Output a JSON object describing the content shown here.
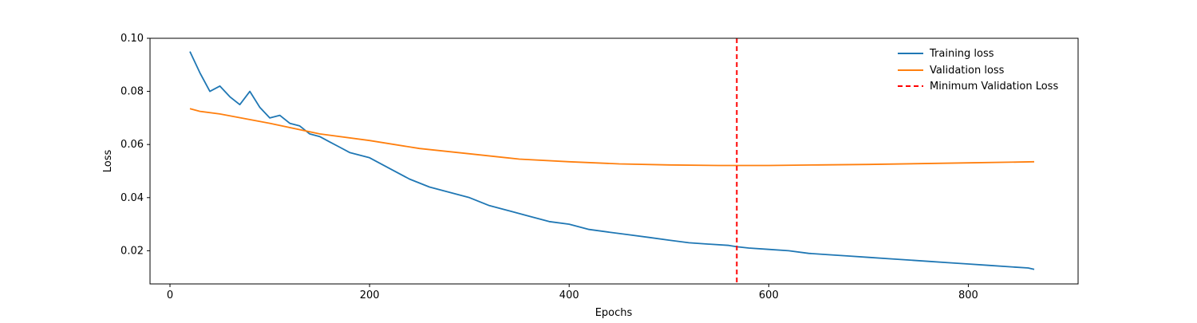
{
  "chart_data": {
    "type": "line",
    "xlabel": "Epochs",
    "ylabel": "Loss",
    "xlim": [
      -20,
      910
    ],
    "ylim": [
      0.0075,
      0.1
    ],
    "x_ticks": [
      0,
      200,
      400,
      600,
      800
    ],
    "y_ticks": [
      0.02,
      0.04,
      0.06,
      0.08,
      0.1
    ],
    "y_tick_labels": [
      "0.02",
      "0.04",
      "0.06",
      "0.08",
      "0.10"
    ],
    "grid": false,
    "legend_position": "top-right",
    "series": [
      {
        "name": "Training loss",
        "color": "#1f77b4",
        "style": "solid",
        "x": [
          20,
          30,
          40,
          50,
          60,
          70,
          80,
          90,
          100,
          110,
          120,
          130,
          140,
          150,
          160,
          170,
          180,
          190,
          200,
          220,
          240,
          260,
          280,
          300,
          320,
          340,
          360,
          380,
          400,
          420,
          440,
          460,
          480,
          500,
          520,
          540,
          560,
          568,
          580,
          600,
          620,
          640,
          660,
          680,
          700,
          720,
          740,
          760,
          780,
          800,
          820,
          840,
          860,
          866
        ],
        "y": [
          0.095,
          0.087,
          0.08,
          0.082,
          0.078,
          0.075,
          0.08,
          0.074,
          0.07,
          0.071,
          0.068,
          0.067,
          0.064,
          0.063,
          0.061,
          0.059,
          0.057,
          0.056,
          0.055,
          0.051,
          0.047,
          0.044,
          0.042,
          0.04,
          0.037,
          0.035,
          0.033,
          0.031,
          0.03,
          0.028,
          0.027,
          0.026,
          0.025,
          0.024,
          0.023,
          0.0225,
          0.022,
          0.0215,
          0.021,
          0.0205,
          0.02,
          0.019,
          0.0185,
          0.018,
          0.0175,
          0.017,
          0.0165,
          0.016,
          0.0155,
          0.015,
          0.0145,
          0.014,
          0.0135,
          0.013
        ]
      },
      {
        "name": "Validation loss",
        "color": "#ff7f0e",
        "style": "solid",
        "x": [
          20,
          30,
          50,
          100,
          150,
          200,
          250,
          300,
          350,
          400,
          450,
          500,
          550,
          568,
          600,
          650,
          700,
          750,
          800,
          850,
          866
        ],
        "y": [
          0.0735,
          0.0725,
          0.0715,
          0.068,
          0.064,
          0.0615,
          0.0585,
          0.0565,
          0.0545,
          0.0535,
          0.0527,
          0.0523,
          0.0521,
          0.0521,
          0.0521,
          0.0523,
          0.0525,
          0.0528,
          0.0531,
          0.0534,
          0.0535
        ]
      }
    ],
    "markers": [
      {
        "name": "Minimum Validation Loss",
        "x": 568,
        "color": "#ff0000",
        "style": "dashed"
      }
    ]
  }
}
